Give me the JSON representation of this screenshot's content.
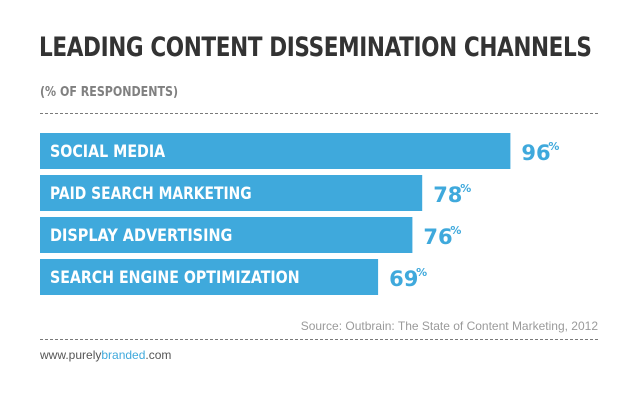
{
  "title": "LEADING CONTENT DISSEMINATION CHANNELS",
  "subtitle": "(% OF RESPONDENTS)",
  "source": "Source: Outbrain: The State of Content Marketing, 2012",
  "website": {
    "prefix": "www.",
    "part1": "purely",
    "part2": "branded",
    "suffix": ".com"
  },
  "colors": {
    "bar": "#3fa9dc",
    "text": "#333333",
    "subtle": "#808080"
  },
  "chart_data": {
    "type": "bar",
    "orientation": "horizontal",
    "categories": [
      "SOCIAL MEDIA",
      "PAID SEARCH MARKETING",
      "DISPLAY ADVERTISING",
      "SEARCH ENGINE OPTIMIZATION"
    ],
    "values": [
      96,
      78,
      76,
      69
    ],
    "value_suffix": "%",
    "title": "LEADING CONTENT DISSEMINATION CHANNELS",
    "subtitle": "(% OF RESPONDENTS)",
    "xlim": [
      0,
      100
    ],
    "grid": false,
    "legend": "none"
  }
}
